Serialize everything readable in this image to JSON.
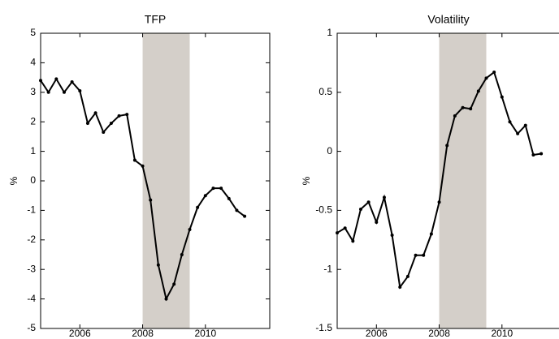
{
  "chart_data": [
    {
      "type": "line",
      "title": "TFP",
      "y_label": "%",
      "x": [
        2004.75,
        2005,
        2005.25,
        2005.5,
        2005.75,
        2006,
        2006.25,
        2006.5,
        2006.75,
        2007,
        2007.25,
        2007.5,
        2007.75,
        2008,
        2008.25,
        2008.5,
        2008.75,
        2009,
        2009.25,
        2009.5,
        2009.75,
        2010,
        2010.25,
        2010.5,
        2010.75,
        2011,
        2011.25
      ],
      "series": [
        {
          "color": "#000000",
          "values": [
            3.4,
            3.0,
            3.45,
            3.0,
            3.35,
            3.05,
            1.95,
            2.3,
            1.65,
            1.95,
            2.2,
            2.25,
            0.7,
            0.5,
            -0.65,
            -2.85,
            -4.0,
            -3.5,
            -2.5,
            -1.65,
            -0.9,
            -0.5,
            -0.25,
            -0.25,
            -0.6,
            -1.0,
            -1.2
          ]
        }
      ],
      "shade": [
        2008,
        2009.5
      ],
      "shade_color": "#d4cfc9",
      "xlim": [
        2004.75,
        2012.05
      ],
      "xticks": [
        2006,
        2008,
        2010
      ],
      "ylim": [
        -5,
        5
      ],
      "yticks": [
        -5,
        -4,
        -3,
        -2,
        -1,
        0,
        1,
        2,
        3,
        4,
        5
      ]
    },
    {
      "type": "line",
      "title": "Volatility",
      "y_label": "%",
      "x": [
        2004.75,
        2005,
        2005.25,
        2005.5,
        2005.75,
        2006,
        2006.25,
        2006.5,
        2006.75,
        2007,
        2007.25,
        2007.5,
        2007.75,
        2008,
        2008.25,
        2008.5,
        2008.75,
        2009,
        2009.25,
        2009.5,
        2009.75,
        2010,
        2010.25,
        2010.5,
        2010.75,
        2011,
        2011.25
      ],
      "series": [
        {
          "color": "#000000",
          "values": [
            -0.69,
            -0.65,
            -0.76,
            -0.49,
            -0.43,
            -0.6,
            -0.39,
            -0.71,
            -1.15,
            -1.06,
            -0.88,
            -0.88,
            -0.7,
            -0.43,
            0.05,
            0.3,
            0.37,
            0.36,
            0.51,
            0.62,
            0.67,
            0.46,
            0.25,
            0.15,
            0.22,
            -0.03,
            -0.02
          ]
        }
      ],
      "shade": [
        2008,
        2009.5
      ],
      "shade_color": "#d4cfc9",
      "xlim": [
        2004.75,
        2012.05
      ],
      "xticks": [
        2006,
        2008,
        2010
      ],
      "ylim": [
        -1.5,
        1
      ],
      "yticks": [
        -1.5,
        -1,
        -0.5,
        0,
        0.5,
        1
      ]
    }
  ]
}
